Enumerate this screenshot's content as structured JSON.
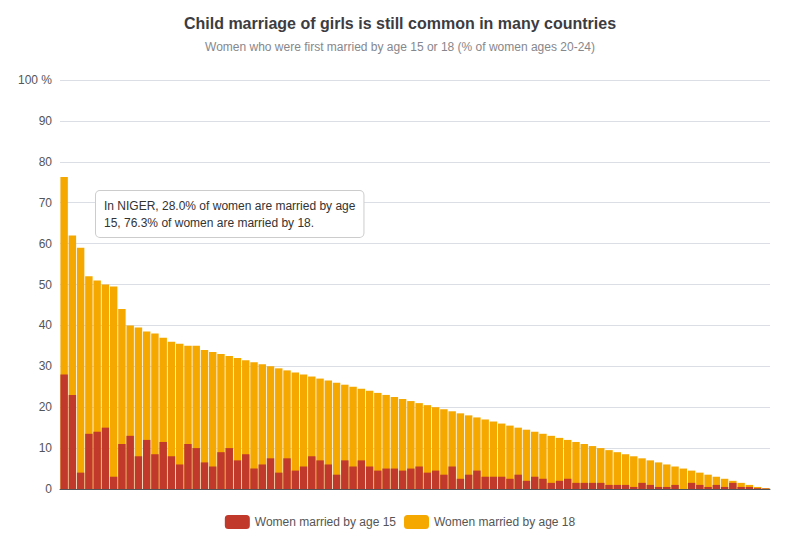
{
  "chart_data": {
    "type": "bar",
    "title": "Child marriage of girls is still common in many countries",
    "subtitle": "Women who were first married by age 15 or 18 (% of women ages 20-24)",
    "annotation": "In NIGER, 28.0% of women are married by age\n15, 76.3% of women are married by 18.",
    "categories": [
      null,
      null,
      null,
      null,
      null,
      null,
      null,
      null,
      null,
      null,
      null,
      null,
      null,
      null,
      null,
      null,
      null,
      null,
      null,
      null,
      null,
      null,
      null,
      null,
      null,
      null,
      null,
      null,
      null,
      null,
      null,
      null,
      null,
      null,
      null,
      null,
      null,
      null,
      null,
      null,
      null,
      null,
      null,
      null,
      null,
      null,
      null,
      null,
      null,
      null,
      null,
      null,
      null,
      null,
      null,
      null,
      null,
      null,
      null,
      null,
      null,
      null,
      null,
      null,
      null,
      null,
      null,
      null,
      null,
      null,
      null,
      null,
      null,
      null,
      null,
      null,
      null,
      null,
      null,
      null,
      null,
      null,
      null,
      null,
      null,
      null
    ],
    "series": [
      {
        "name": "Women married by age 15",
        "color": "#c0392b",
        "values": [
          28.0,
          23.0,
          4.0,
          13.5,
          14.0,
          15.0,
          3.0,
          11.0,
          13.0,
          8.0,
          12.0,
          8.5,
          11.5,
          8.0,
          6.0,
          11.0,
          10.0,
          6.5,
          5.5,
          9.0,
          10.0,
          7.0,
          8.5,
          5.0,
          6.0,
          7.5,
          4.0,
          7.5,
          4.5,
          5.5,
          8.0,
          7.0,
          6.0,
          3.5,
          7.0,
          5.5,
          7.0,
          5.5,
          4.5,
          5.0,
          5.0,
          4.5,
          5.0,
          5.5,
          4.0,
          4.5,
          3.5,
          5.5,
          2.5,
          3.5,
          4.5,
          3.0,
          3.0,
          3.0,
          2.5,
          3.5,
          2.0,
          3.0,
          2.5,
          1.5,
          2.0,
          2.5,
          1.5,
          1.5,
          1.5,
          1.5,
          1.0,
          1.0,
          1.0,
          0.5,
          1.5,
          1.0,
          0.5,
          0.5,
          1.0,
          0.0,
          1.5,
          1.0,
          0.5,
          1.0,
          0.5,
          1.5,
          0.5,
          0.5,
          0.2,
          0.1
        ]
      },
      {
        "name": "Women married by age 18",
        "color": "#f5a800",
        "values": [
          76.3,
          62.0,
          59.0,
          52.0,
          51.0,
          50.0,
          49.5,
          44.0,
          40.0,
          39.5,
          38.5,
          38.0,
          37.0,
          36.0,
          35.5,
          35.0,
          35.0,
          34.0,
          33.5,
          33.0,
          32.5,
          32.0,
          31.5,
          31.0,
          30.5,
          30.0,
          29.5,
          29.0,
          28.5,
          28.0,
          27.5,
          27.0,
          26.5,
          26.0,
          25.5,
          25.0,
          24.5,
          24.0,
          23.5,
          23.0,
          22.5,
          22.0,
          21.5,
          21.0,
          20.5,
          20.0,
          19.5,
          19.0,
          18.5,
          18.0,
          17.5,
          17.0,
          16.5,
          16.0,
          15.5,
          15.0,
          14.5,
          14.0,
          13.5,
          13.0,
          12.5,
          12.0,
          11.5,
          11.0,
          10.5,
          10.0,
          9.5,
          9.0,
          8.5,
          8.0,
          7.5,
          7.0,
          6.5,
          6.0,
          5.5,
          5.0,
          4.5,
          4.0,
          3.5,
          3.0,
          2.5,
          2.0,
          1.5,
          1.0,
          0.5,
          0.2
        ]
      }
    ],
    "ylim": [
      0,
      100
    ],
    "yticks": [
      0,
      10,
      20,
      30,
      40,
      50,
      60,
      70,
      80,
      90,
      {
        "value": 100,
        "label": "100 %"
      }
    ],
    "grid": true,
    "legend": "bottom",
    "tick_labels": "y"
  }
}
